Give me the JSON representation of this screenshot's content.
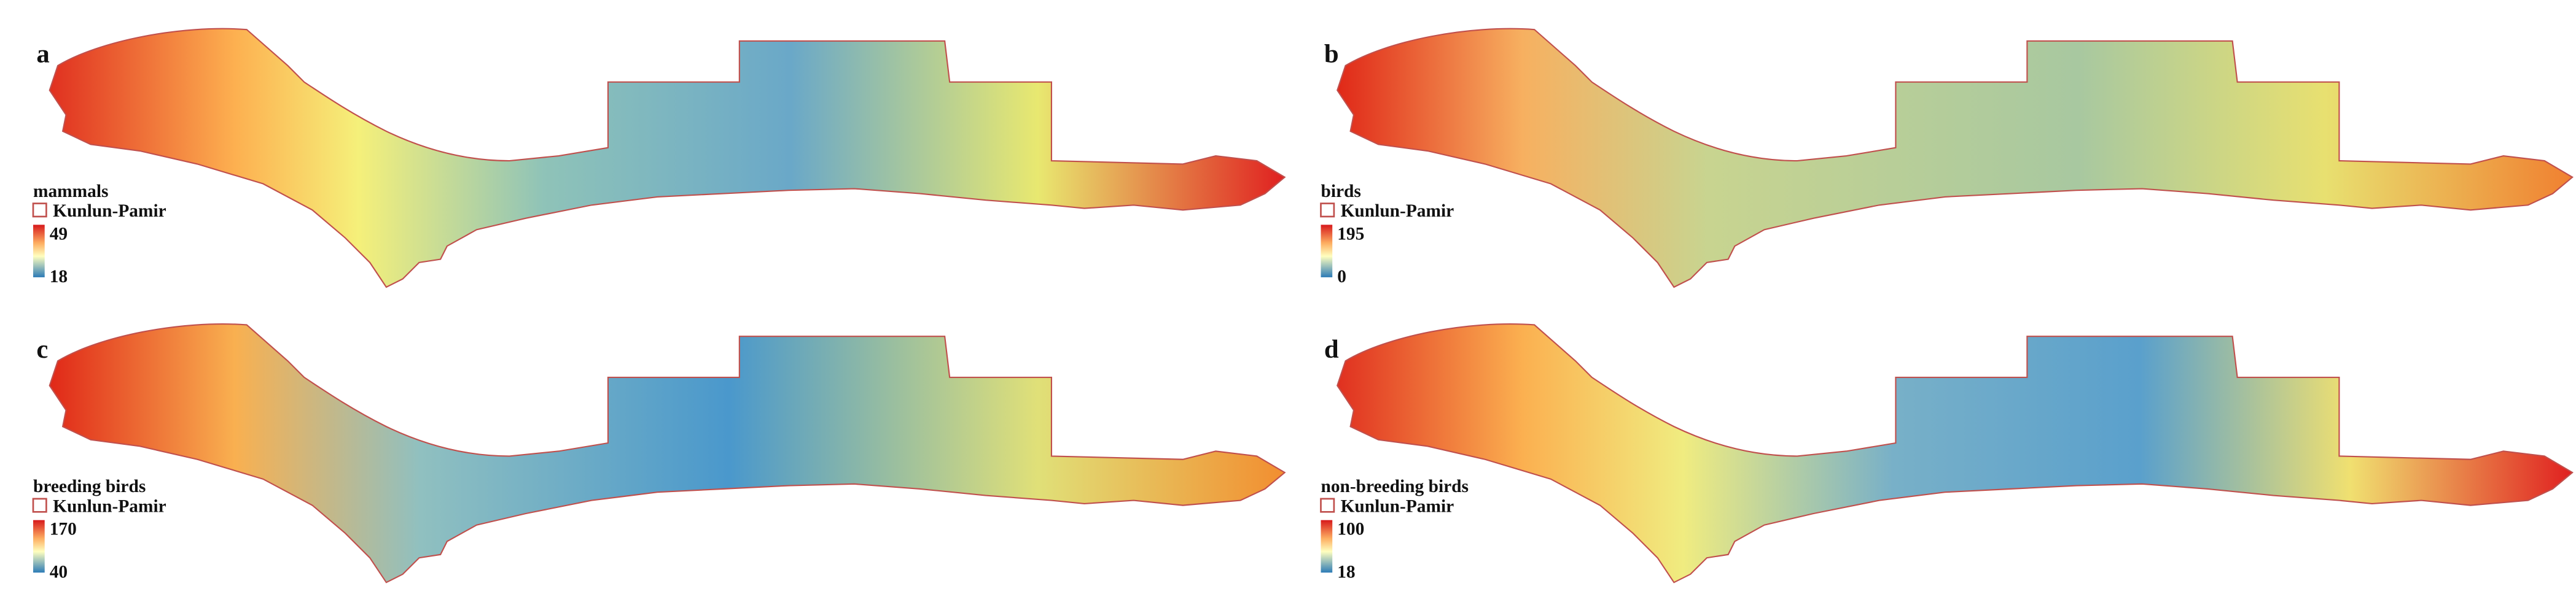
{
  "panels": [
    {
      "letter": "a",
      "legend_title": "mammals",
      "boundary_label": "Kunlun-Pamir",
      "max": 49,
      "min": 18
    },
    {
      "letter": "b",
      "legend_title": "birds",
      "boundary_label": "Kunlun-Pamir",
      "max": 195,
      "min": 0
    },
    {
      "letter": "c",
      "legend_title": "breeding birds",
      "boundary_label": "Kunlun-Pamir",
      "max": 170,
      "min": 40
    },
    {
      "letter": "d",
      "legend_title": "non-breeding birds",
      "boundary_label": "Kunlun-Pamir",
      "max": 100,
      "min": 18
    }
  ]
}
